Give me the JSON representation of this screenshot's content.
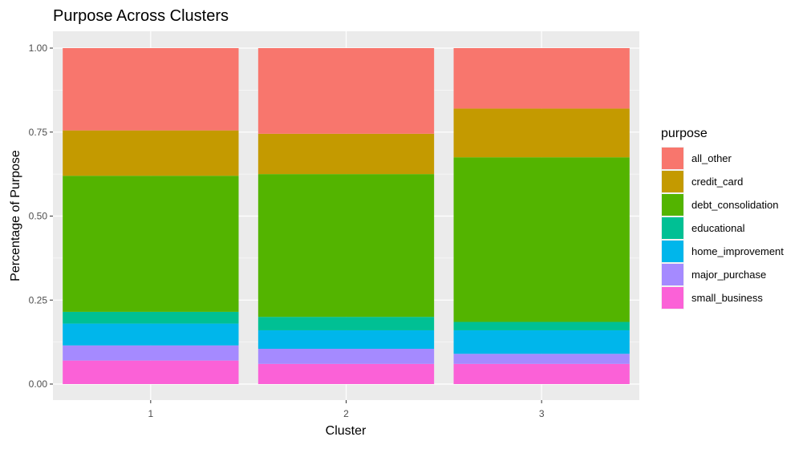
{
  "chart_data": {
    "type": "bar",
    "stacked": true,
    "title": "Purpose Across Clusters",
    "xlabel": "Cluster",
    "ylabel": "Percentage of Purpose",
    "categories": [
      "1",
      "2",
      "3"
    ],
    "ylim": [
      0,
      1
    ],
    "yticks": [
      "0.00",
      "0.25",
      "0.50",
      "0.75",
      "1.00"
    ],
    "ytick_values": [
      0,
      0.25,
      0.5,
      0.75,
      1.0
    ],
    "grid": true,
    "legend_title": "purpose",
    "legend_position": "right",
    "series": [
      {
        "name": "all_other",
        "color": "#F8766D",
        "values": [
          0.245,
          0.255,
          0.18
        ]
      },
      {
        "name": "credit_card",
        "color": "#C49A00",
        "values": [
          0.135,
          0.12,
          0.145
        ]
      },
      {
        "name": "debt_consolidation",
        "color": "#53B400",
        "values": [
          0.405,
          0.425,
          0.49
        ]
      },
      {
        "name": "educational",
        "color": "#00C094",
        "values": [
          0.035,
          0.04,
          0.025
        ]
      },
      {
        "name": "home_improvement",
        "color": "#00B6EB",
        "values": [
          0.065,
          0.055,
          0.07
        ]
      },
      {
        "name": "major_purchase",
        "color": "#A58AFF",
        "values": [
          0.045,
          0.045,
          0.03
        ]
      },
      {
        "name": "small_business",
        "color": "#FB61D7",
        "values": [
          0.07,
          0.06,
          0.06
        ]
      }
    ]
  }
}
